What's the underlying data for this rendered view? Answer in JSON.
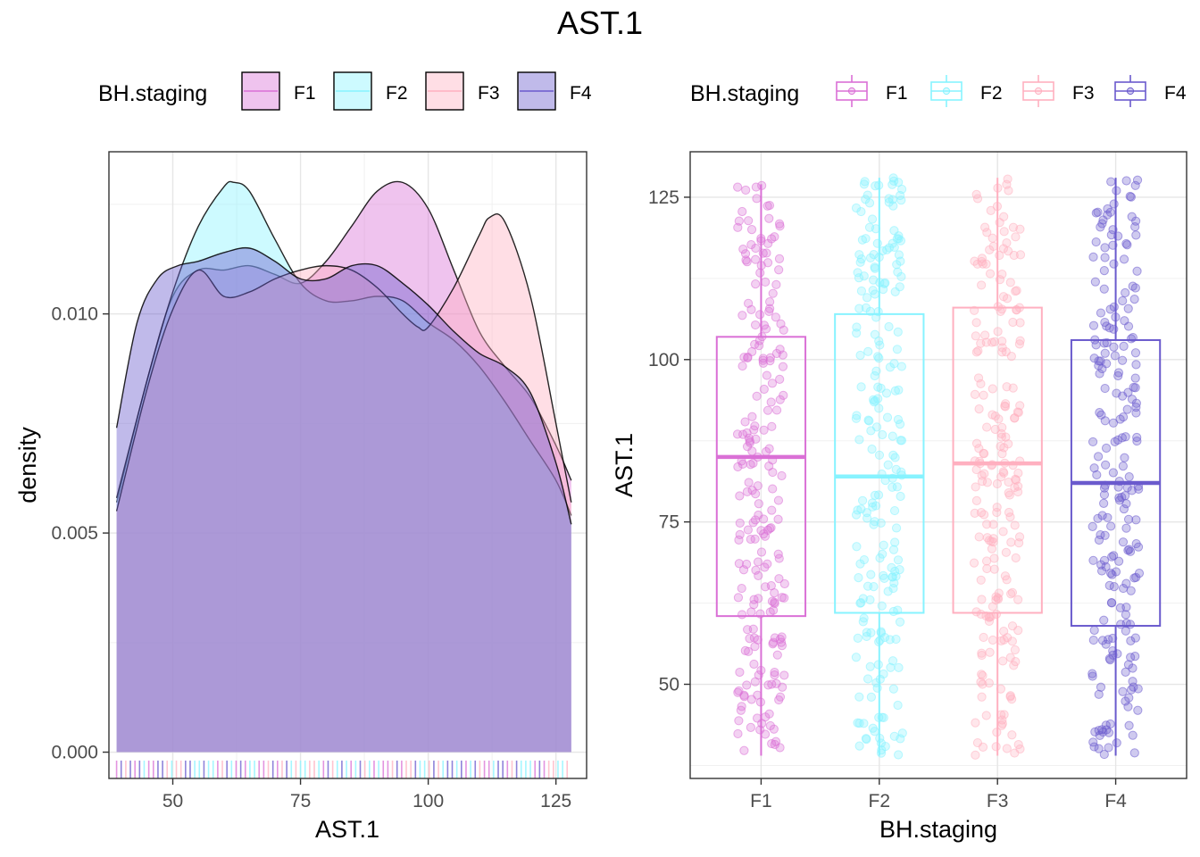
{
  "title": "AST.1",
  "colors": {
    "F1": "#da70d6",
    "F2": "#87f3ff",
    "F3": "#ffb0c0",
    "F4": "#6a5acd"
  },
  "chart_data": [
    {
      "type": "area",
      "subtype": "density",
      "xlabel": "AST.1",
      "ylabel": "density",
      "xlim": [
        37.5,
        131
      ],
      "ylim": [
        -0.0006,
        0.0137
      ],
      "xticks": [
        50,
        75,
        100,
        125
      ],
      "xtick_labels": [
        "50",
        "75",
        "100",
        "125"
      ],
      "yticks": [
        0.0,
        0.005,
        0.01
      ],
      "ytick_labels": [
        "0.000",
        "0.005",
        "0.010"
      ],
      "grid": true,
      "legend": {
        "title": "BH.staging",
        "position": "top",
        "entries": [
          "F1",
          "F2",
          "F3",
          "F4"
        ]
      },
      "rug": true,
      "series": [
        {
          "name": "F1",
          "x": [
            39,
            45,
            50,
            55,
            60,
            65,
            70,
            75,
            80,
            85,
            90,
            95,
            100,
            105,
            110,
            115,
            120,
            125,
            128
          ],
          "y": [
            0.0057,
            0.0085,
            0.0104,
            0.011,
            0.011,
            0.0111,
            0.0109,
            0.0107,
            0.0112,
            0.012,
            0.0128,
            0.013,
            0.0124,
            0.011,
            0.0096,
            0.0088,
            0.0081,
            0.007,
            0.0062
          ]
        },
        {
          "name": "F2",
          "x": [
            39,
            45,
            50,
            55,
            60,
            62,
            65,
            70,
            75,
            80,
            85,
            90,
            95,
            100,
            105,
            110,
            115,
            120,
            125,
            128
          ],
          "y": [
            0.0058,
            0.0085,
            0.0105,
            0.012,
            0.0129,
            0.013,
            0.0128,
            0.0117,
            0.0107,
            0.0103,
            0.0103,
            0.0104,
            0.0103,
            0.0098,
            0.0094,
            0.0088,
            0.008,
            0.0071,
            0.0062,
            0.0054
          ]
        },
        {
          "name": "F3",
          "x": [
            39,
            45,
            50,
            55,
            60,
            65,
            70,
            75,
            80,
            85,
            90,
            95,
            98,
            100,
            105,
            110,
            112,
            115,
            120,
            125,
            128
          ],
          "y": [
            0.0055,
            0.0083,
            0.0101,
            0.011,
            0.0104,
            0.0105,
            0.0108,
            0.011,
            0.0111,
            0.011,
            0.0106,
            0.01,
            0.0097,
            0.0097,
            0.0106,
            0.0118,
            0.0122,
            0.0121,
            0.0104,
            0.0075,
            0.0057
          ]
        },
        {
          "name": "F4",
          "x": [
            39,
            43,
            47,
            51,
            55,
            60,
            65,
            70,
            75,
            80,
            85,
            90,
            95,
            100,
            105,
            110,
            115,
            120,
            125,
            128
          ],
          "y": [
            0.0074,
            0.0098,
            0.0108,
            0.0111,
            0.0112,
            0.0114,
            0.0115,
            0.0112,
            0.0108,
            0.0108,
            0.0111,
            0.0111,
            0.0107,
            0.0102,
            0.0096,
            0.0091,
            0.0088,
            0.0082,
            0.0066,
            0.0052
          ]
        }
      ]
    },
    {
      "type": "boxplot",
      "subtype": "box-with-jitter",
      "xlabel": "BH.staging",
      "ylabel": "AST.1",
      "categories": [
        "F1",
        "F2",
        "F3",
        "F4"
      ],
      "ylim": [
        35.5,
        132
      ],
      "yticks": [
        50,
        75,
        100,
        125
      ],
      "ytick_labels": [
        "50",
        "75",
        "100",
        "125"
      ],
      "grid": true,
      "legend": {
        "title": "BH.staging",
        "position": "top",
        "entries": [
          "F1",
          "F2",
          "F3",
          "F4"
        ]
      },
      "boxes": [
        {
          "name": "F1",
          "min": 39,
          "q1": 60.5,
          "median": 85,
          "q3": 103.5,
          "max": 127
        },
        {
          "name": "F2",
          "min": 39,
          "q1": 61,
          "median": 82,
          "q3": 107,
          "max": 128
        },
        {
          "name": "F3",
          "min": 39,
          "q1": 61,
          "median": 84,
          "q3": 108,
          "max": 128
        },
        {
          "name": "F4",
          "min": 39,
          "q1": 59,
          "median": 81,
          "q3": 103,
          "max": 128
        }
      ]
    }
  ]
}
